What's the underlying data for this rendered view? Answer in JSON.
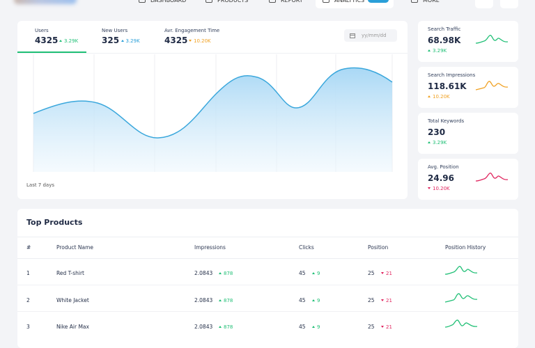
{
  "nav": {
    "items": [
      "DASHBOARD",
      "PRODUCTS",
      "REPORT",
      "ANALYTICS",
      "MORE"
    ]
  },
  "stats": [
    {
      "label": "Users",
      "value": 4325,
      "change": "3.29K",
      "trend": "up",
      "color": "#1fbf75"
    },
    {
      "label": "New Users",
      "value": 325,
      "change": "3.29K",
      "trend": "up",
      "color": "#2a9fd8"
    },
    {
      "label": "Avr. Engagement Time",
      "value": 4325,
      "change": "10.20K",
      "trend": "down",
      "color": "#f0a020"
    }
  ],
  "date_placeholder": "yy/mm/dd",
  "chart_caption": "Last 7 days",
  "side_cards": [
    {
      "title": "Search Traffic",
      "value": "68.98K",
      "change": "3.29K",
      "trend": "up",
      "color": "#1fbf75"
    },
    {
      "title": "Search Impressions",
      "value": "118.61K",
      "change": "10.20K",
      "trend": "up",
      "color": "#f0a020"
    },
    {
      "title": "Total Keywords",
      "value": 230,
      "change": "3.29K",
      "trend": "up",
      "color": "#1fbf75"
    },
    {
      "title": "Avg. Position",
      "value": 24.96,
      "change": "10.20K",
      "trend": "down",
      "color": "#e0245e"
    }
  ],
  "table": {
    "title": "Top Products",
    "headers": [
      "#",
      "Product Name",
      "Impressions",
      "Clicks",
      "Position",
      "Position History"
    ],
    "rows": [
      {
        "rank": 1,
        "name": "Red T-shirt",
        "impressions": 2.0843,
        "impressions_change": 878,
        "clicks": 45,
        "clicks_change": 9,
        "position": 25,
        "position_change": 21
      },
      {
        "rank": 2,
        "name": "White Jacket",
        "impressions": 2.0843,
        "impressions_change": 878,
        "clicks": 45,
        "clicks_change": 9,
        "position": 25,
        "position_change": 21
      },
      {
        "rank": 3,
        "name": "Nike Air Max",
        "impressions": 2.0843,
        "impressions_change": 878,
        "clicks": 45,
        "clicks_change": 9,
        "position": 25,
        "position_change": 21
      }
    ]
  }
}
